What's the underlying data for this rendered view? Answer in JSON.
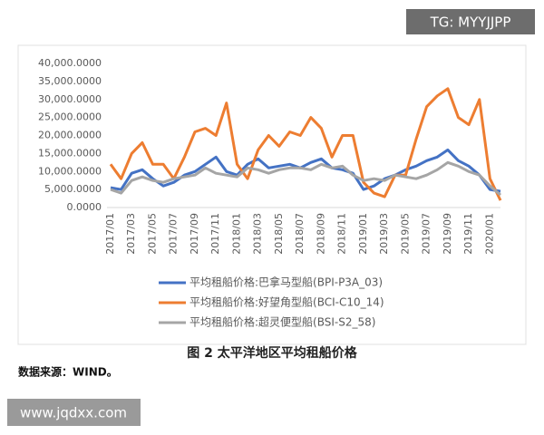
{
  "chart_data": {
    "type": "line",
    "categories": [
      "2017/01",
      null,
      "2017/03",
      null,
      "2017/05",
      null,
      "2017/07",
      null,
      "2017/09",
      null,
      "2017/11",
      null,
      "2018/01",
      null,
      "2018/03",
      null,
      "2018/05",
      null,
      "2018/07",
      null,
      "2018/09",
      null,
      "2018/11",
      null,
      "2019/01",
      null,
      "2019/03",
      null,
      "2019/05",
      null,
      "2019/07",
      null,
      "2019/09",
      null,
      "2019/11",
      null,
      "2020/01",
      null
    ],
    "series": [
      {
        "name": "平均租船价格:巴拿马型船(BPI-P3A_03)",
        "color": "#4472c4",
        "values": [
          5500,
          5000,
          9500,
          10500,
          8000,
          6000,
          7000,
          9000,
          10000,
          12000,
          14000,
          10000,
          9000,
          12000,
          13500,
          11000,
          11500,
          12000,
          11000,
          12500,
          13500,
          11000,
          10500,
          9500,
          5000,
          6000,
          8000,
          9000,
          10500,
          11500,
          13000,
          14000,
          16000,
          13000,
          11500,
          9000,
          5000,
          4500
        ]
      },
      {
        "name": "平均租船价格:好望角型船(BCI-C10_14)",
        "color": "#ed7d31",
        "values": [
          12000,
          8000,
          15000,
          18000,
          12000,
          12000,
          8000,
          14000,
          21000,
          22000,
          20000,
          29000,
          12000,
          8000,
          16000,
          20000,
          17000,
          21000,
          20000,
          25000,
          22000,
          14000,
          20000,
          20000,
          7000,
          4000,
          3000,
          9000,
          9000,
          19000,
          28000,
          31000,
          33000,
          25000,
          23000,
          30000,
          8000,
          2000
        ]
      },
      {
        "name": "平均租船价格:超灵便型船(BSI-S2_58)",
        "color": "#a5a5a5",
        "values": [
          5000,
          4000,
          7500,
          8500,
          7500,
          7000,
          8000,
          8500,
          9000,
          11000,
          9500,
          9000,
          8500,
          11000,
          10500,
          9500,
          10500,
          11000,
          11000,
          10500,
          12000,
          11000,
          11500,
          9000,
          7500,
          8000,
          7500,
          9000,
          8500,
          8000,
          9000,
          10500,
          12500,
          11500,
          10000,
          9000,
          6000,
          3500
        ]
      }
    ],
    "ylim": [
      0,
      40000
    ],
    "yticks": [
      {
        "value": 0,
        "label": "0.0000"
      },
      {
        "value": 5000,
        "label": "5,000.0000"
      },
      {
        "value": 10000,
        "label": "10,000.0000"
      },
      {
        "value": 15000,
        "label": "15,000.0000"
      },
      {
        "value": 20000,
        "label": "20,000.0000"
      },
      {
        "value": 25000,
        "label": "25,000.0000"
      },
      {
        "value": 30000,
        "label": "30,000.0000"
      },
      {
        "value": 35000,
        "label": "35,000.0000"
      },
      {
        "value": 40000,
        "label": "40,000.0000"
      }
    ],
    "grid": false
  },
  "caption": "图 2  太平洋地区平均租船价格",
  "source": "数据来源：WIND。",
  "watermark_top": "TG: MYYJJPP",
  "watermark_bottom": "www.jqdxx.com"
}
